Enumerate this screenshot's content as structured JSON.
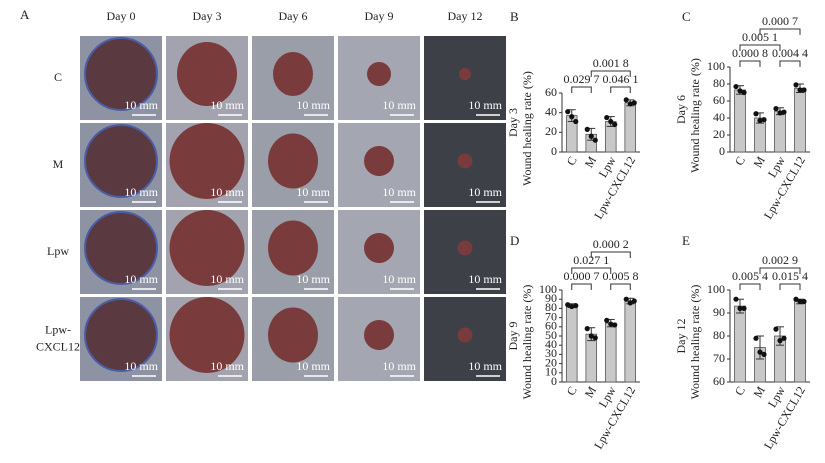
{
  "panel_a": {
    "label": "A",
    "columns": [
      "Day 0",
      "Day 3",
      "Day 6",
      "Day 9",
      "Day 12"
    ],
    "rows": [
      [
        "C"
      ],
      [
        "M"
      ],
      [
        "Lpw"
      ],
      [
        "Lpw-",
        "CXCL12"
      ]
    ],
    "scale_bar": "10 mm"
  },
  "chart_data": [
    {
      "panel": "B",
      "type": "bar",
      "group_label": "Day 3",
      "ylabel": "Wound healing rate (%)",
      "categories": [
        "C",
        "M",
        "Lpw",
        "Lpw-CXCL12"
      ],
      "values": [
        37,
        18,
        31,
        50
      ],
      "errors": [
        6,
        6,
        5,
        3
      ],
      "points": [
        [
          41,
          36,
          31
        ],
        [
          23,
          16,
          12
        ],
        [
          35,
          31,
          28
        ],
        [
          53,
          49,
          50
        ]
      ],
      "color": "#c8c8c8",
      "ylim": [
        0,
        60
      ],
      "yticks": [
        0,
        20,
        40,
        60
      ],
      "comparisons": [
        {
          "from": 0,
          "to": 1,
          "label": "0.029 7"
        },
        {
          "from": 2,
          "to": 3,
          "label": "0.046 1"
        },
        {
          "from": 1,
          "to": 3,
          "label": "0.001 8"
        }
      ]
    },
    {
      "panel": "C",
      "type": "bar",
      "group_label": "Day 6",
      "ylabel": "Wound healing rate (%)",
      "categories": [
        "C",
        "M",
        "Lpw",
        "Lpw-CXCL12"
      ],
      "values": [
        73,
        40,
        48,
        75
      ],
      "errors": [
        5,
        6,
        4,
        5
      ],
      "points": [
        [
          77,
          72,
          70
        ],
        [
          45,
          37,
          38
        ],
        [
          51,
          46,
          47
        ],
        [
          79,
          73,
          73
        ]
      ],
      "color": "#c8c8c8",
      "ylim": [
        0,
        100
      ],
      "yticks": [
        0,
        20,
        40,
        60,
        80,
        100
      ],
      "comparisons": [
        {
          "from": 0,
          "to": 1,
          "label": "0.000 8"
        },
        {
          "from": 2,
          "to": 3,
          "label": "0.004 4"
        },
        {
          "from": 0,
          "to": 2,
          "label": "0.005 1"
        },
        {
          "from": 1,
          "to": 3,
          "label": "0.000 7"
        }
      ]
    },
    {
      "panel": "D",
      "type": "bar",
      "group_label": "Day 9",
      "ylabel": "Wound healing rate (%)",
      "categories": [
        "C",
        "M",
        "Lpw",
        "Lpw-CXCL12"
      ],
      "values": [
        83,
        52,
        64,
        88
      ],
      "errors": [
        2,
        7,
        4,
        3
      ],
      "points": [
        [
          84,
          82,
          83
        ],
        [
          58,
          50,
          48
        ],
        [
          67,
          63,
          62
        ],
        [
          90,
          86,
          88
        ]
      ],
      "color": "#c8c8c8",
      "ylim": [
        0,
        100
      ],
      "yticks": [
        0,
        10,
        20,
        30,
        40,
        50,
        60,
        70,
        80,
        90,
        100
      ],
      "comparisons": [
        {
          "from": 0,
          "to": 1,
          "label": "0.000 7"
        },
        {
          "from": 2,
          "to": 3,
          "label": "0.005 8"
        },
        {
          "from": 0,
          "to": 2,
          "label": "0.027 1"
        },
        {
          "from": 1,
          "to": 3,
          "label": "0.000 2"
        }
      ]
    },
    {
      "panel": "E",
      "type": "bar",
      "group_label": "Day 12",
      "ylabel": "Wound healing rate (%)",
      "categories": [
        "C",
        "M",
        "Lpw",
        "Lpw-CXCL12"
      ],
      "values": [
        93,
        75,
        80,
        95
      ],
      "errors": [
        3,
        5,
        4,
        1
      ],
      "points": [
        [
          96,
          92,
          92
        ],
        [
          79,
          73,
          72
        ],
        [
          83,
          78,
          79
        ],
        [
          96,
          95,
          95
        ]
      ],
      "color": "#c8c8c8",
      "ylim": [
        60,
        100
      ],
      "yticks": [
        60,
        70,
        80,
        90,
        100
      ],
      "comparisons": [
        {
          "from": 0,
          "to": 1,
          "label": "0.005 4"
        },
        {
          "from": 2,
          "to": 3,
          "label": "0.015 4"
        },
        {
          "from": 1,
          "to": 3,
          "label": "0.002 9"
        }
      ]
    }
  ]
}
